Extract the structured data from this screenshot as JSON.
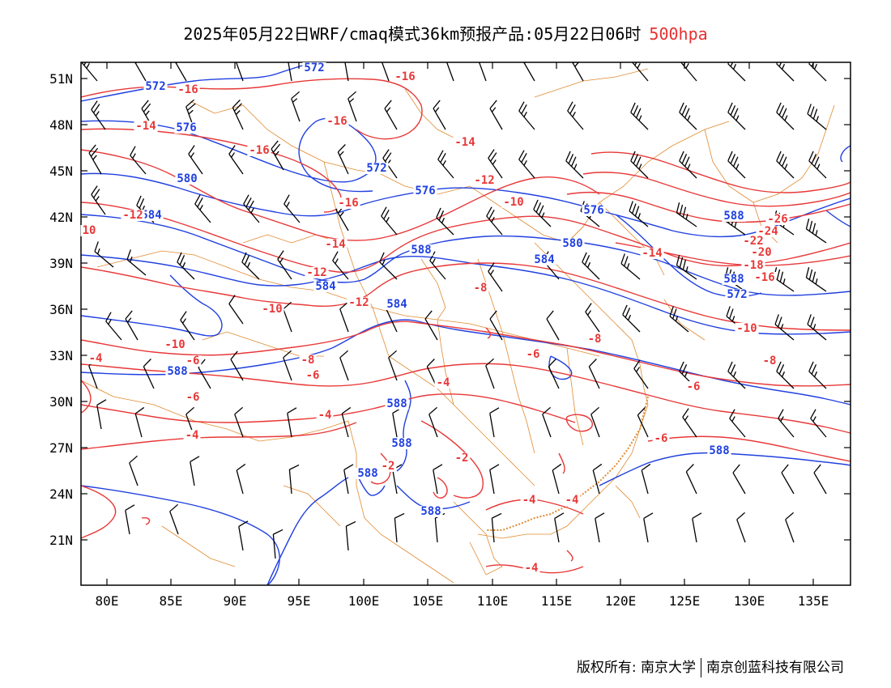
{
  "title": "2025年05月22日WRF/cmaq模式36km预报产品:05月22日06时",
  "level": "500hpa",
  "footer": {
    "copyright_label": "版权所有:",
    "org1": "南京大学",
    "org2": "南京创蓝科技有限公司"
  },
  "axes": {
    "lat_labels": [
      "51N",
      "48N",
      "45N",
      "42N",
      "39N",
      "36N",
      "33N",
      "30N",
      "27N",
      "24N",
      "21N"
    ],
    "lon_labels": [
      "80E",
      "85E",
      "90E",
      "95E",
      "100E",
      "105E",
      "110E",
      "115E",
      "120E",
      "125E",
      "130E",
      "135E"
    ]
  },
  "colors": {
    "temperature": "#e83838",
    "height": "#2040e0",
    "border": "#e08a30",
    "wind": "#000000"
  },
  "height_contour_labels": [
    "572",
    "572",
    "576",
    "580",
    "584",
    "572",
    "576",
    "576",
    "580",
    "584",
    "588",
    "584",
    "584",
    "588",
    "588",
    "588",
    "588",
    "588",
    "588",
    "588",
    "588",
    "572"
  ],
  "temp_contour_labels": [
    "-16",
    "-16",
    "-14",
    "-16",
    "-16",
    "-14",
    "-12",
    "-16",
    "-14",
    "-12",
    "-10",
    "-10",
    "-12",
    "-10",
    "-8",
    "-8",
    "-6",
    "-6",
    "-8",
    "-4",
    "-6",
    "-6",
    "-4",
    "-4",
    "-2",
    "-2",
    "-4",
    "-4",
    "-4",
    "-4",
    "-14",
    "-26",
    "-24",
    "-22",
    "-20",
    "-18",
    "-16",
    "-10",
    "-8",
    "-6",
    "-6",
    "-12",
    "10"
  ]
}
